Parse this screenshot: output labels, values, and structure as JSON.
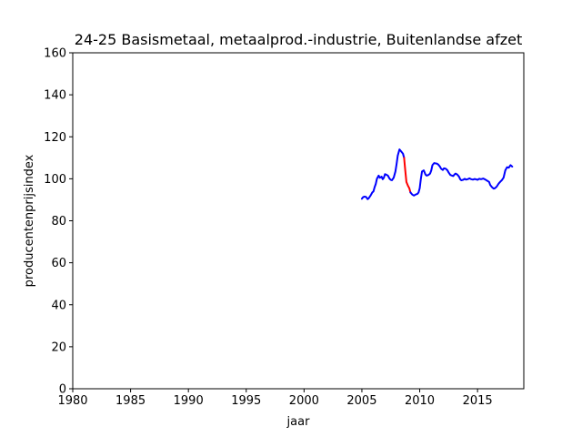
{
  "chart_data": {
    "type": "line",
    "title": "24-25 Basismetaal, metaalprod.-industrie, Buitenlandse afzet",
    "xlabel": "jaar",
    "ylabel": "producentenprijsindex",
    "xlim": [
      1980,
      2019
    ],
    "ylim": [
      0,
      160
    ],
    "xticks": [
      1980,
      1985,
      1990,
      1995,
      2000,
      2005,
      2010,
      2015
    ],
    "yticks": [
      0,
      20,
      40,
      60,
      80,
      100,
      120,
      140,
      160
    ],
    "grid": false,
    "series": [
      {
        "color": "#0000ff",
        "x": [
          2005.0,
          2005.1,
          2005.2,
          2005.35,
          2005.5,
          2005.6,
          2005.75,
          2005.9,
          2006.0,
          2006.1,
          2006.2,
          2006.3,
          2006.45,
          2006.55,
          2006.7,
          2006.8,
          2006.9,
          2007.0,
          2007.1,
          2007.25,
          2007.4,
          2007.5,
          2007.6,
          2007.75,
          2007.9,
          2008.0,
          2008.1,
          2008.25,
          2008.4,
          2008.55,
          2008.65
        ],
        "y": [
          90.5,
          91.2,
          91.5,
          91.4,
          90.3,
          90.8,
          92.0,
          93.5,
          94.0,
          96.0,
          97.5,
          100.0,
          101.5,
          100.5,
          101.0,
          99.8,
          100.5,
          102.2,
          102.0,
          101.5,
          100.0,
          99.5,
          99.3,
          100.5,
          103.5,
          107.0,
          111.0,
          114.0,
          113.0,
          112.0,
          110.0
        ]
      },
      {
        "color": "#ff0000",
        "x": [
          2008.65,
          2008.75,
          2008.85,
          2009.0,
          2009.1,
          2009.2
        ],
        "y": [
          110.0,
          104.0,
          98.5,
          96.5,
          95.5,
          93.5
        ]
      },
      {
        "color": "#0000ff",
        "x": [
          2009.2,
          2009.35,
          2009.5,
          2009.65,
          2009.8,
          2009.9,
          2010.0,
          2010.1,
          2010.2,
          2010.35,
          2010.5,
          2010.6,
          2010.75,
          2010.9,
          2011.0,
          2011.1,
          2011.25,
          2011.4,
          2011.5,
          2011.6,
          2011.75,
          2011.85,
          2012.0,
          2012.1,
          2012.25,
          2012.4,
          2012.5,
          2012.65,
          2012.8,
          2012.9,
          2013.0,
          2013.1,
          2013.25,
          2013.4,
          2013.5,
          2013.6,
          2013.75,
          2013.9,
          2014.0,
          2014.15,
          2014.3,
          2014.45,
          2014.6,
          2014.75,
          2014.9,
          2015.0,
          2015.15,
          2015.3,
          2015.5,
          2015.65,
          2015.8,
          2016.0,
          2016.1,
          2016.25,
          2016.4,
          2016.5,
          2016.65,
          2016.8,
          2016.9,
          2017.0,
          2017.1,
          2017.25,
          2017.4,
          2017.55,
          2017.7,
          2017.85,
          2018.0
        ],
        "y": [
          93.5,
          92.5,
          92.0,
          92.5,
          92.8,
          93.5,
          95.5,
          100.0,
          103.5,
          104.0,
          102.0,
          101.5,
          101.8,
          102.5,
          104.0,
          106.5,
          107.5,
          107.3,
          107.2,
          106.8,
          105.8,
          104.8,
          104.2,
          105.0,
          104.8,
          104.0,
          103.0,
          101.8,
          101.5,
          101.3,
          102.0,
          102.5,
          102.0,
          101.0,
          99.8,
          99.3,
          99.5,
          100.0,
          99.6,
          99.8,
          100.2,
          99.8,
          99.6,
          99.9,
          99.7,
          99.5,
          100.0,
          99.8,
          100.1,
          99.7,
          99.2,
          98.5,
          97.0,
          96.0,
          95.3,
          95.5,
          96.2,
          97.5,
          98.2,
          98.8,
          99.3,
          100.5,
          104.0,
          105.5,
          105.3,
          106.5,
          105.8
        ]
      }
    ]
  }
}
